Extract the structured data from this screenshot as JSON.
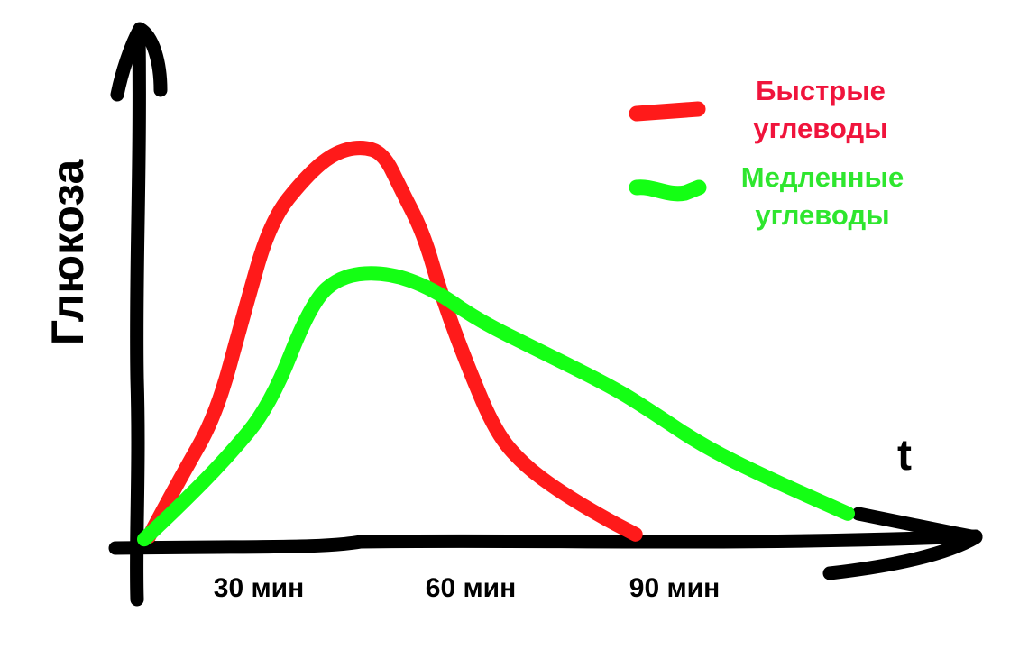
{
  "chart_data": {
    "type": "line",
    "title": "",
    "xlabel": "t",
    "ylabel": "Глюкоза",
    "x_tick_labels": [
      "30 мин",
      "60 мин",
      "90 мин"
    ],
    "xlim": [
      0,
      140
    ],
    "ylim": [
      0,
      100
    ],
    "grid": false,
    "legend_placement": "top-right",
    "series": [
      {
        "name": "Быстрые углеводы",
        "color": "#ff1a1a",
        "x": [
          0.8,
          6.2,
          12.3,
          16.9,
          21.5,
          27.7,
          32.3,
          36.9,
          40.8,
          43.8,
          47.7,
          50.8,
          55.4,
          60,
          64.6,
          70.8,
          78.5,
          83.8
        ],
        "y": [
          1.1,
          15.6,
          31.1,
          55.6,
          78.9,
          90,
          95.6,
          97.3,
          95.6,
          86.7,
          75.6,
          60,
          42.2,
          26.7,
          18.9,
          12.2,
          5.6,
          1.6
        ]
      },
      {
        "name": "Медленные углеводы",
        "color": "#14ff14",
        "x": [
          0,
          6.2,
          13.8,
          21.5,
          28.5,
          33.8,
          41.5,
          49.2,
          56.9,
          67.7,
          80,
          86.2,
          95.4,
          106.2,
          120
        ],
        "y": [
          0.4,
          8.9,
          20,
          33.3,
          58.9,
          65.6,
          66.2,
          62.2,
          54.4,
          46.7,
          37.8,
          32.2,
          23.3,
          15.6,
          6.7
        ]
      }
    ]
  },
  "legend": {
    "fast_line1": "Быстрые",
    "fast_line2": "углеводы",
    "slow_line1": "Медленные",
    "slow_line2": "углеводы",
    "fast_color": "#f0143c",
    "slow_color": "#2ee62e"
  }
}
